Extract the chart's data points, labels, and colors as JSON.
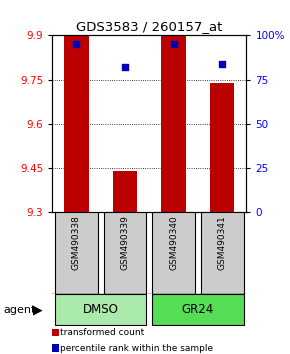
{
  "title": "GDS3583 / 260157_at",
  "samples": [
    "GSM490338",
    "GSM490339",
    "GSM490340",
    "GSM490341"
  ],
  "group_spans": [
    [
      0,
      1,
      "DMSO",
      "#aaeaaa"
    ],
    [
      2,
      3,
      "GR24",
      "#55dd55"
    ]
  ],
  "bar_values": [
    9.9,
    9.44,
    9.9,
    9.74
  ],
  "percentile_values": [
    95,
    82,
    95,
    84
  ],
  "ylim_left": [
    9.3,
    9.9
  ],
  "ylim_right": [
    0,
    100
  ],
  "yticks_left": [
    9.3,
    9.45,
    9.6,
    9.75,
    9.9
  ],
  "yticks_right": [
    0,
    25,
    50,
    75,
    100
  ],
  "ytick_labels_right": [
    "0",
    "25",
    "50",
    "75",
    "100%"
  ],
  "bar_color": "#BB0000",
  "percentile_color": "#0000BB",
  "bar_width": 0.5,
  "legend_items": [
    "transformed count",
    "percentile rank within the sample"
  ],
  "legend_colors": [
    "#BB0000",
    "#0000BB"
  ],
  "sample_box_color": "#cccccc",
  "figsize": [
    2.9,
    3.54
  ],
  "dpi": 100
}
